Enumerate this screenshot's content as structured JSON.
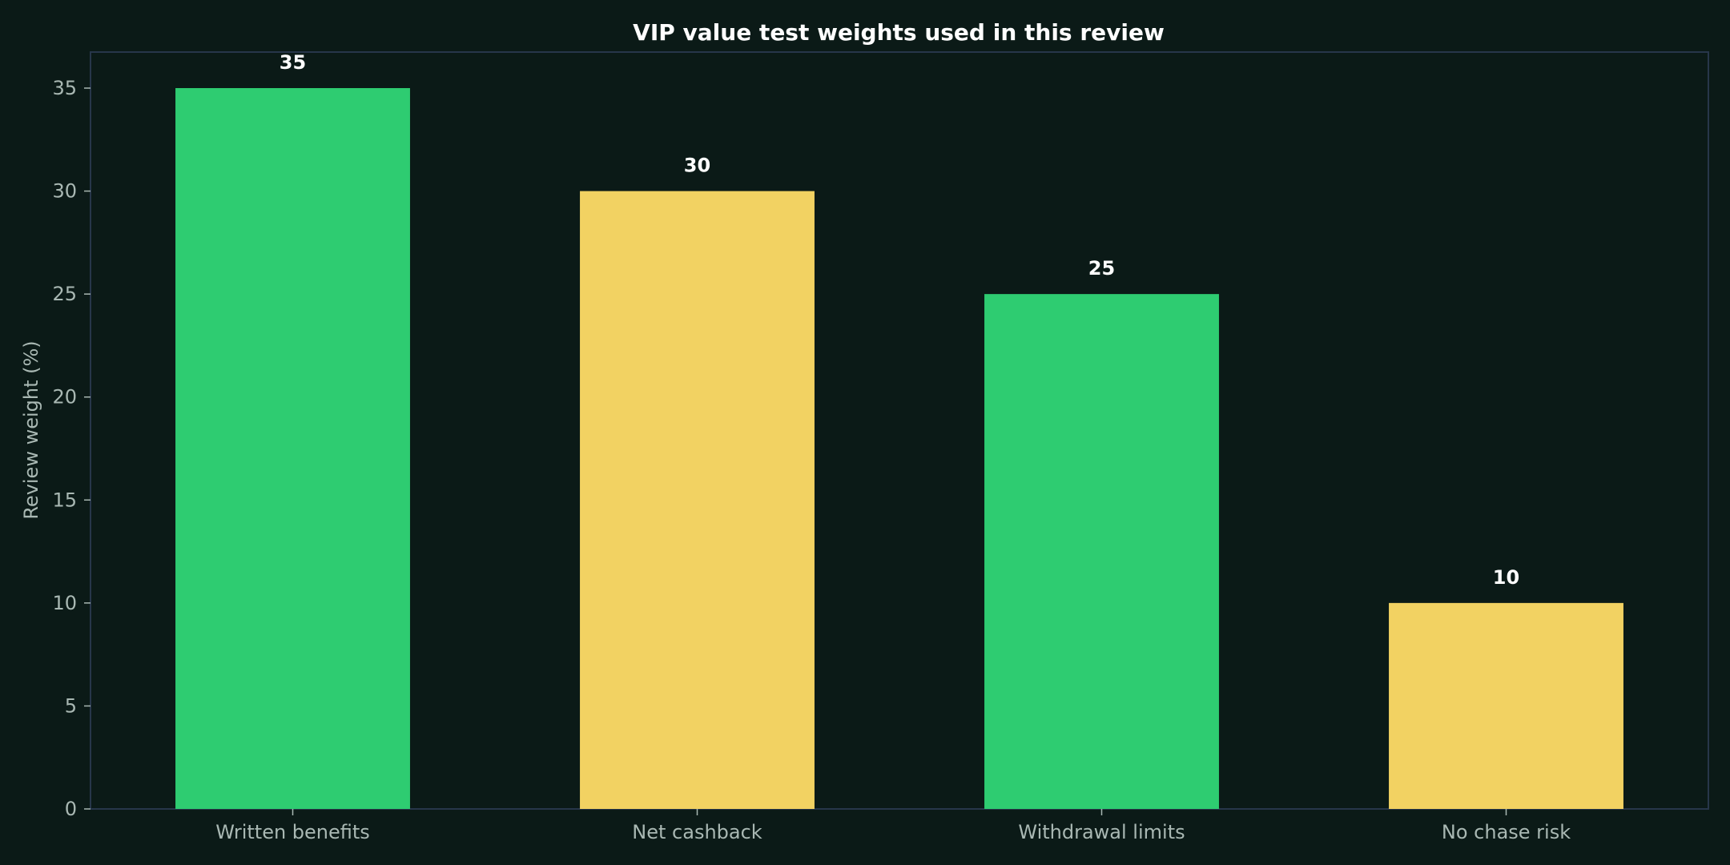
{
  "chart_data": {
    "type": "bar",
    "title": "VIP value test weights used in this review",
    "xlabel": "",
    "ylabel": "Review weight (%)",
    "categories": [
      "Written benefits",
      "Net cashback",
      "Withdrawal limits",
      "No chase risk"
    ],
    "values": [
      35,
      30,
      25,
      10
    ],
    "data_labels": [
      "35",
      "30",
      "25",
      "10"
    ],
    "bar_colors": [
      "#2ecc71",
      "#f2d262",
      "#2ecc71",
      "#f2d262"
    ],
    "ylim": [
      0,
      36.75
    ],
    "yticks": [
      0,
      5,
      10,
      15,
      20,
      25,
      30,
      35
    ],
    "grid": false,
    "legend": "none"
  },
  "colors": {
    "background": "#0b1a17",
    "text": "#ffffff",
    "muted_text": "#a9b8b3",
    "frame": "#27364a"
  }
}
